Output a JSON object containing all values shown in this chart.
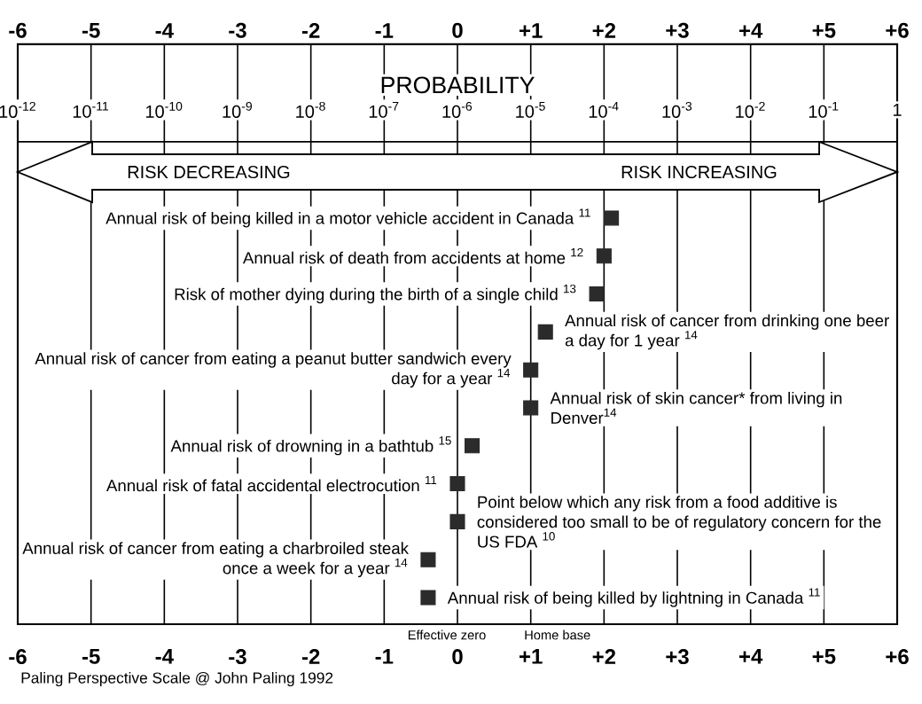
{
  "chart_data": {
    "type": "scatter",
    "orientation": "horizontal",
    "categories": [
      "Annual risk of being killed in a motor vehicle accident in Canada $^{11}$",
      "Annual risk of death from accidents at home $^{12}$",
      "Risk of mother dying during the birth of a single child $^{13}$",
      "Annual risk of cancer from drinking one beer a day for 1 year $^{14}$",
      "Annual risk of cancer from eating a peanut butter sandwich every day for a year $^{14}$",
      "Annual risk of skin cancer* from living in Denver$^{14}$",
      "Annual risk of drowning in a bathtub $^{15}$",
      "Annual risk of fatal accidental electrocution $^{11}$",
      "Point below which any risk from a food additive is considered too small to be of regulatory concern for the US FDA $^{10}$",
      "Annual risk of cancer from eating a charbroiled steak once a week for a year $^{14}$",
      "Annual risk of being killed by lightning in Canada $^{11}$"
    ],
    "series": [
      {
        "color": "#2b2b2b",
        "values": [
          2.1,
          2.0,
          1.9,
          null,
          1.0,
          null,
          0.2,
          0.0,
          null,
          -0.4,
          null
        ]
      },
      {
        "color": "#2b2b2b",
        "values": [
          null,
          null,
          null,
          1.2,
          null,
          1.0,
          null,
          null,
          0.0,
          null,
          -0.4
        ]
      }
    ],
    "marker": "square",
    "xlim": [
      -6,
      6
    ],
    "xticks": [
      -6,
      -5,
      -4,
      -3,
      -2,
      -1,
      0,
      {
        "value": 1,
        "label": "+1"
      },
      {
        "value": 2,
        "label": "+2"
      },
      {
        "value": 3,
        "label": "+3"
      },
      {
        "value": 4,
        "label": "+4"
      },
      {
        "value": 5,
        "label": "+5"
      },
      {
        "value": 6,
        "label": "+6"
      }
    ],
    "x2lim": [
      -6,
      6
    ],
    "x2ticks": [
      -6,
      -5,
      -4,
      -3,
      -2,
      -1,
      0,
      {
        "value": 1,
        "label": "+1"
      },
      {
        "value": 2,
        "label": "+2"
      },
      {
        "value": 3,
        "label": "+3"
      },
      {
        "value": 4,
        "label": "+4"
      },
      {
        "value": 5,
        "label": "+5"
      },
      {
        "value": 6,
        "label": "+6"
      }
    ],
    "grid": "x",
    "annotations": [
      "RISK DECREASING",
      "RISK INCREASING",
      "Paling Perspective Scale @ John Paling 1992",
      "Effective zero",
      "Home base",
      "PROBABILITY",
      "10$^{-12}$",
      "10$^{-11}$",
      "10$^{-10}$",
      "10$^{-9}$",
      "10$^{-8}$",
      "10$^{-7}$",
      "10$^{-6}$",
      "10$^{-5}$",
      "10$^{-4}$",
      "10$^{-3}$",
      "10$^{-2}$",
      "10$^{-1}$",
      "1"
    ]
  }
}
